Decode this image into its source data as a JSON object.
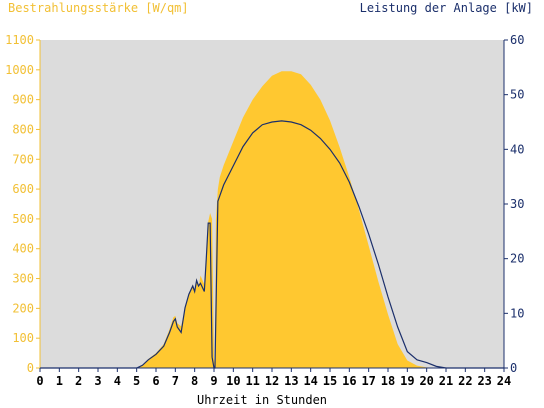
{
  "chart_data": {
    "type": "area",
    "title_left": "Bestrahlungsstärke [W/qm]",
    "title_right": "Leistung der Anlage [kW]",
    "xlabel": "Uhrzeit in Stunden",
    "xlim": [
      0,
      24
    ],
    "x_ticks": [
      "0",
      "1",
      "2",
      "3",
      "4",
      "5",
      "6",
      "7",
      "8",
      "9",
      "10",
      "11",
      "12",
      "13",
      "14",
      "15",
      "16",
      "17",
      "18",
      "19",
      "20",
      "21",
      "22",
      "23",
      "24"
    ],
    "ylim_left": [
      0,
      1100
    ],
    "y_ticks_left": [
      "0",
      "100",
      "200",
      "300",
      "400",
      "500",
      "600",
      "700",
      "800",
      "900",
      "1000",
      "1100"
    ],
    "ylim_right": [
      0,
      60
    ],
    "y_ticks_right": [
      "0",
      "10",
      "20",
      "30",
      "40",
      "50",
      "60"
    ],
    "colors": {
      "plot_background": "#dcdcdc",
      "irradiance_fill": "#ffc830",
      "power_line": "#1b2f6b",
      "left_axis_text": "#f2c035",
      "right_axis_text": "#1b2f6b"
    },
    "series": [
      {
        "name": "Bestrahlungsstärke [W/qm]",
        "axis": "left",
        "style": "area",
        "x": [
          0,
          5,
          5.3,
          5.6,
          6.0,
          6.4,
          6.7,
          6.9,
          7.0,
          7.1,
          7.3,
          7.5,
          7.7,
          7.9,
          8.0,
          8.1,
          8.2,
          8.3,
          8.5,
          8.6,
          8.7,
          8.8,
          8.9,
          9.0,
          9.05,
          9.1,
          9.2,
          9.3,
          9.5,
          10.0,
          10.5,
          11.0,
          11.5,
          12.0,
          12.5,
          13.0,
          13.5,
          14.0,
          14.5,
          15.0,
          15.5,
          16.0,
          16.5,
          17.0,
          17.5,
          18.0,
          18.5,
          19.0,
          19.5,
          20.0,
          20.5,
          21.0,
          24
        ],
        "values": [
          0,
          0,
          10,
          30,
          50,
          80,
          130,
          170,
          175,
          150,
          140,
          200,
          250,
          280,
          260,
          300,
          270,
          310,
          280,
          380,
          490,
          520,
          500,
          30,
          5,
          500,
          600,
          640,
          680,
          760,
          840,
          900,
          945,
          980,
          995,
          995,
          985,
          950,
          900,
          830,
          740,
          640,
          530,
          410,
          290,
          180,
          80,
          25,
          8,
          2,
          0,
          0,
          0
        ]
      },
      {
        "name": "Leistung der Anlage [kW]",
        "axis": "right",
        "style": "line",
        "x": [
          0,
          5,
          5.3,
          5.6,
          6.0,
          6.4,
          6.7,
          6.9,
          7.0,
          7.1,
          7.3,
          7.5,
          7.7,
          7.9,
          8.0,
          8.1,
          8.2,
          8.3,
          8.5,
          8.6,
          8.7,
          8.8,
          8.9,
          9.0,
          9.05,
          9.2,
          9.3,
          9.5,
          10.0,
          10.5,
          11.0,
          11.5,
          12.0,
          12.5,
          13.0,
          13.5,
          14.0,
          14.5,
          15.0,
          15.5,
          16.0,
          16.5,
          17.0,
          17.5,
          18.0,
          18.5,
          19.0,
          19.5,
          20.0,
          20.5,
          21.0,
          24
        ],
        "values": [
          0,
          0,
          0.5,
          1.5,
          2.5,
          4,
          6.5,
          8.5,
          9,
          7.5,
          6.5,
          11,
          13.5,
          15,
          14,
          16,
          15,
          15.5,
          14,
          20,
          26.5,
          26.5,
          2,
          0,
          0,
          30.5,
          31.5,
          33.5,
          37,
          40.5,
          43,
          44.5,
          45,
          45.2,
          45,
          44.5,
          43.5,
          42,
          40,
          37.5,
          34,
          29.5,
          24.5,
          19,
          13,
          7.5,
          3,
          1.5,
          1,
          0.3,
          0,
          0
        ]
      }
    ],
    "grid": false,
    "legend": "none"
  }
}
